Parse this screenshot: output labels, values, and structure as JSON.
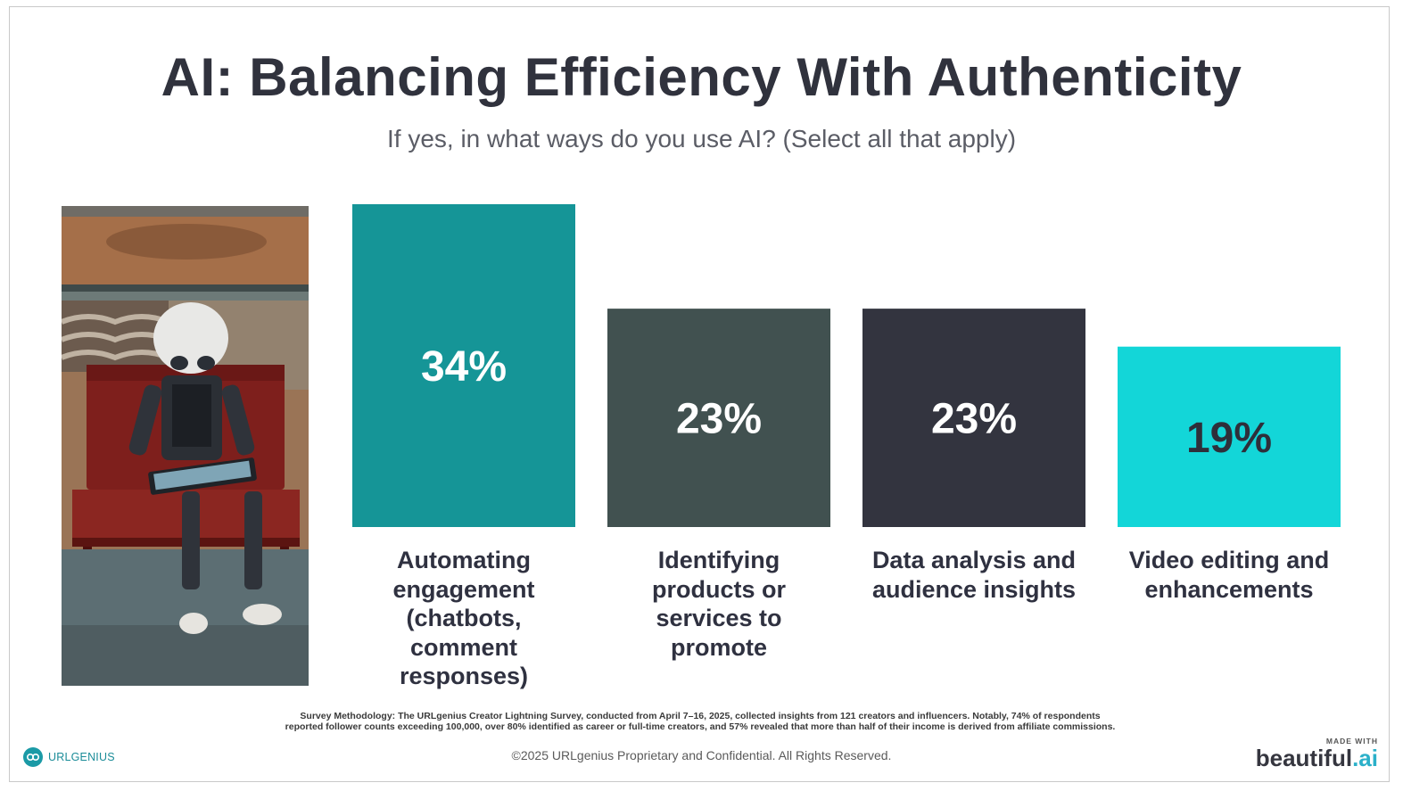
{
  "header": {
    "title": "AI: Balancing Efficiency With Authenticity",
    "subtitle": "If yes, in what ways do you use AI? (Select all that apply)"
  },
  "chart_data": {
    "type": "bar",
    "categories": [
      "Automating engagement (chatbots, comment responses)",
      "Identifying products or services to promote",
      "Data analysis and audience insights",
      "Video editing and enhancements"
    ],
    "values": [
      34,
      23,
      23,
      19
    ],
    "value_labels": [
      "34%",
      "23%",
      "23%",
      "19%"
    ],
    "colors": [
      "#159597",
      "#415150",
      "#33343f",
      "#13d6d8"
    ],
    "label_colors": [
      "#ffffff",
      "#ffffff",
      "#ffffff",
      "#2e2f3a"
    ],
    "title": "AI: Balancing Efficiency With Authenticity",
    "xlabel": "",
    "ylabel": "",
    "ylim": [
      0,
      34
    ]
  },
  "labels": [
    "Automating engagement (chatbots, comment responses)",
    "Identifying products or services to promote",
    "Data analysis and audience insights",
    "Video editing and enhancements"
  ],
  "footer": {
    "methodology_line1": "Survey Methodology: The URLgenius Creator Lightning Survey, conducted from April 7–16, 2025, collected insights from 121 creators and influencers. Notably, 74% of respondents",
    "methodology_line2": "reported follower counts exceeding 100,000, over 80% identified as career or full-time creators, and 57% revealed that more than half of their income is derived from affiliate commissions.",
    "copyright": "©2025 URLgenius Proprietary and Confidential. All Rights Reserved.",
    "brand": "URLGENIUS",
    "made_with": "MADE WITH",
    "made_brand_main": "beautiful",
    "made_brand_dot": ".ai"
  }
}
